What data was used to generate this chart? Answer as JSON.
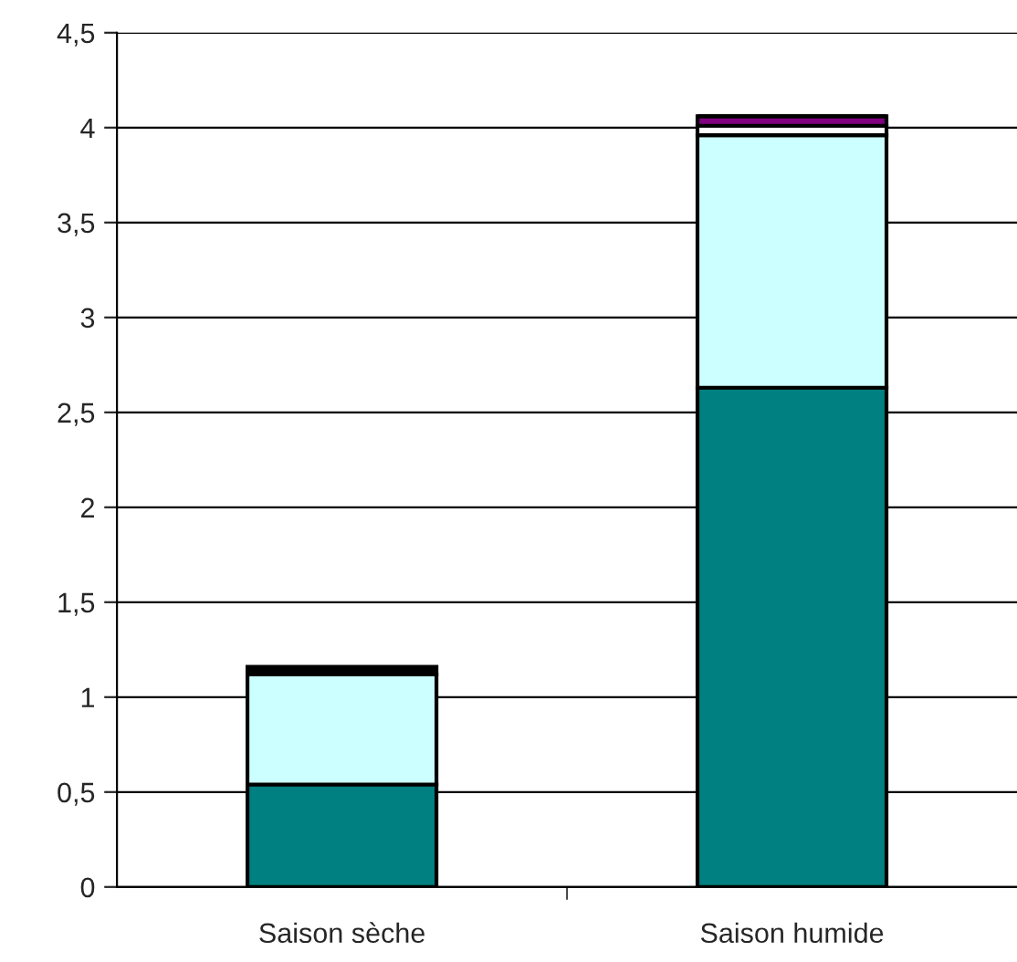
{
  "chart_data": {
    "type": "bar",
    "stacked": true,
    "categories": [
      "Saison sèche",
      "Saison humide"
    ],
    "series": [
      {
        "color": "#008080",
        "values": [
          0.54,
          2.63
        ]
      },
      {
        "color": "#ccffff",
        "values": [
          0.58,
          1.33
        ]
      },
      {
        "color": "#ffffff",
        "values": [
          0,
          0.05
        ]
      },
      {
        "color": "#800080",
        "values": [
          0,
          0.05
        ]
      },
      {
        "color": "#000000",
        "values": [
          0.04,
          0
        ]
      }
    ],
    "ylim": [
      0,
      4.5
    ],
    "yticks": [
      0,
      {
        "value": 0.5,
        "label": "0,5"
      },
      1,
      {
        "value": 1.5,
        "label": "1,5"
      },
      2,
      {
        "value": 2.5,
        "label": "2,5"
      },
      3,
      {
        "value": 3.5,
        "label": "3,5"
      },
      4,
      {
        "value": 4.5,
        "label": "4,5"
      }
    ],
    "grid": "y",
    "legend": false
  }
}
